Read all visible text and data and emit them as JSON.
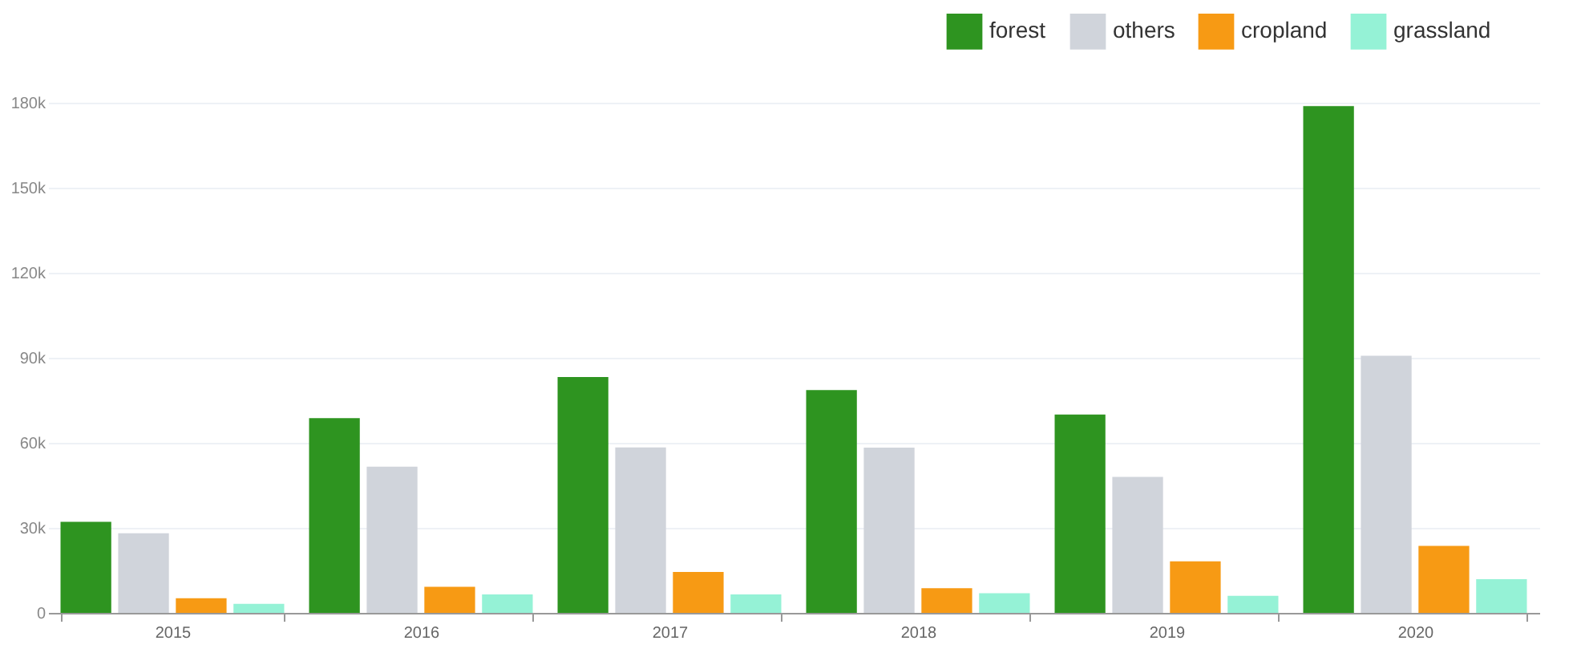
{
  "chart_data": {
    "type": "bar",
    "categories": [
      "2015",
      "2016",
      "2017",
      "2018",
      "2019",
      "2020"
    ],
    "series": [
      {
        "name": "forest",
        "color": "#2e9420",
        "values": [
          32100,
          68700,
          83200,
          78600,
          70000,
          178800
        ]
      },
      {
        "name": "others",
        "color": "#d0d4db",
        "values": [
          28100,
          51600,
          58400,
          58300,
          48000,
          90700
        ]
      },
      {
        "name": "cropland",
        "color": "#f79a14",
        "values": [
          5200,
          9200,
          14400,
          8700,
          18200,
          23600
        ]
      },
      {
        "name": "grassland",
        "color": "#95f2d6",
        "values": [
          3200,
          6500,
          6500,
          6900,
          6000,
          11900
        ]
      }
    ],
    "ylim": [
      0,
      180000
    ],
    "yticks": [
      0,
      {
        "value": 30000,
        "label": "30k"
      },
      {
        "value": 60000,
        "label": "60k"
      },
      {
        "value": 90000,
        "label": "90k"
      },
      {
        "value": 120000,
        "label": "120k"
      },
      {
        "value": 150000,
        "label": "150k"
      },
      {
        "value": 180000,
        "label": "180k"
      }
    ],
    "grid": "y",
    "legend": "top right"
  }
}
